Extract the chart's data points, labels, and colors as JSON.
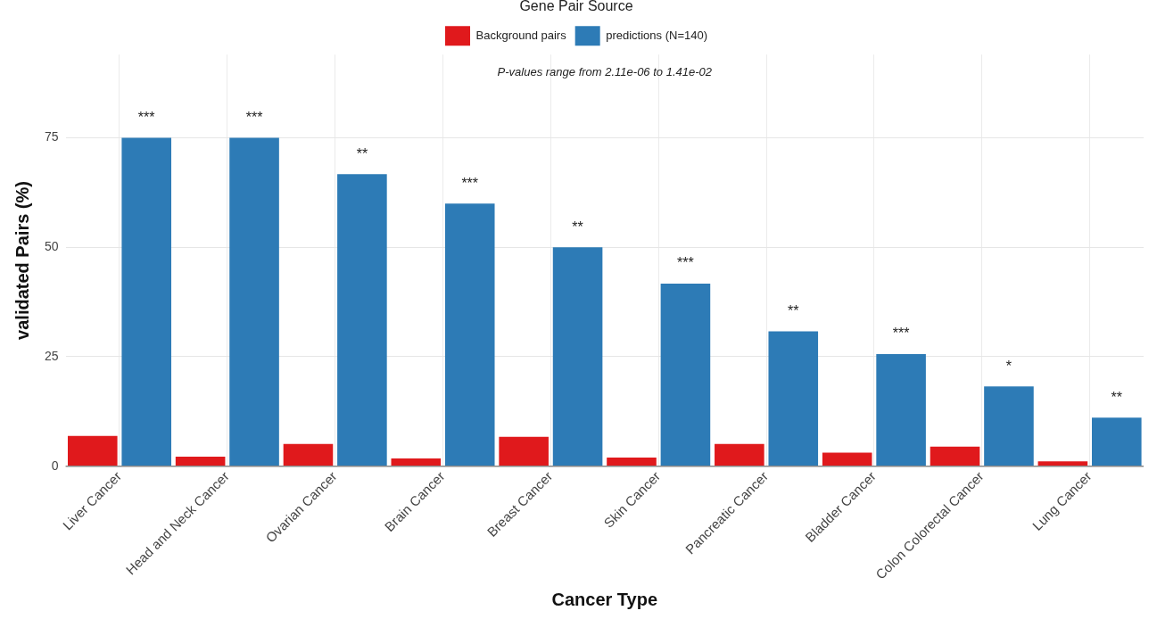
{
  "chart_data": {
    "type": "bar",
    "subtitle": "P-values range from 2.11e-06 to 1.41e-02",
    "xlabel": "Cancer Type",
    "ylabel": "validated Pairs (%)",
    "legend_title": "Gene Pair Source",
    "legend": "top",
    "categories": [
      "Liver Cancer",
      "Head and Neck Cancer",
      "Ovarian Cancer",
      "Brain Cancer",
      "Breast Cancer",
      "Skin Cancer",
      "Pancreatic Cancer",
      "Bladder Cancer",
      "Colon Colorectal Cancer",
      "Lung Cancer"
    ],
    "series": [
      {
        "name": "Background pairs",
        "color": "#e0191c",
        "values": [
          6.9,
          2.2,
          5.1,
          1.8,
          6.7,
          2.0,
          5.1,
          3.1,
          4.5,
          1.1
        ]
      },
      {
        "name": "predictions (N=140)",
        "color": "#2d7bb6",
        "values": [
          75,
          75,
          66.7,
          60,
          50,
          41.7,
          30.8,
          25.6,
          18.2,
          11.1
        ]
      }
    ],
    "ylim": [
      0,
      94
    ],
    "yticks": [
      0,
      25,
      50,
      75
    ],
    "grid": true,
    "annotations": [
      {
        "text": "***",
        "x": "Liver Cancer",
        "y": 75
      },
      {
        "text": "***",
        "x": "Head and Neck Cancer",
        "y": 75
      },
      {
        "text": "**",
        "x": "Ovarian Cancer",
        "y": 66.7
      },
      {
        "text": "***",
        "x": "Brain Cancer",
        "y": 60
      },
      {
        "text": "**",
        "x": "Breast Cancer",
        "y": 50
      },
      {
        "text": "***",
        "x": "Skin Cancer",
        "y": 41.7
      },
      {
        "text": "**",
        "x": "Pancreatic Cancer",
        "y": 30.8
      },
      {
        "text": "***",
        "x": "Bladder Cancer",
        "y": 25.6
      },
      {
        "text": "*",
        "x": "Colon Colorectal Cancer",
        "y": 18.2
      },
      {
        "text": "**",
        "x": "Lung Cancer",
        "y": 11.1
      }
    ]
  }
}
